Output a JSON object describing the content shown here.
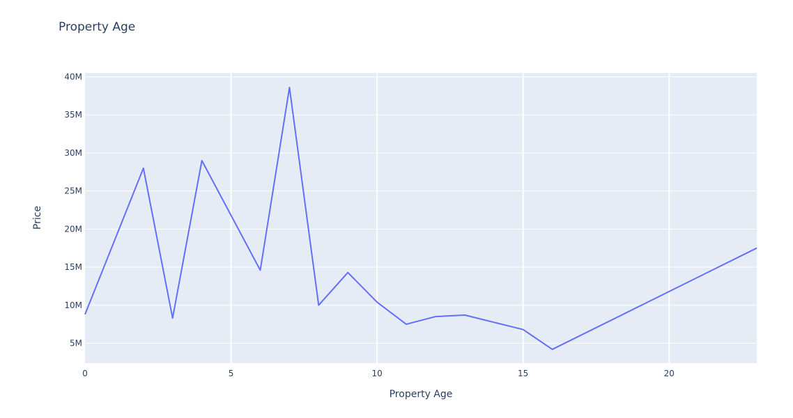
{
  "chart_data": {
    "type": "line",
    "title": "Property Age",
    "xlabel": "Property Age",
    "ylabel": "Price",
    "xlim": [
      0,
      23
    ],
    "ylim": [
      2400000,
      40500000
    ],
    "xticks": [
      0,
      5,
      10,
      15,
      20
    ],
    "xtick_labels": [
      "0",
      "5",
      "10",
      "15",
      "20"
    ],
    "yticks": [
      5000000,
      10000000,
      15000000,
      20000000,
      25000000,
      30000000,
      35000000,
      40000000
    ],
    "ytick_labels": [
      "5M",
      "10M",
      "15M",
      "20M",
      "25M",
      "30M",
      "35M",
      "40M"
    ],
    "grid": true,
    "legend": "none",
    "colors": {
      "plot_background": "#e5ecf6",
      "grid": "#ffffff",
      "line": "#636efa",
      "text": "#2a3f5f"
    },
    "series": [
      {
        "x": [
          0,
          2,
          3,
          4,
          6,
          7,
          8,
          9,
          10,
          11,
          12,
          13,
          15,
          16,
          23
        ],
        "y": [
          8800000,
          28000000,
          8300000,
          29000000,
          14600000,
          38600000,
          10000000,
          14300000,
          10400000,
          7500000,
          8500000,
          8700000,
          6800000,
          4200000,
          17500000
        ]
      }
    ]
  }
}
